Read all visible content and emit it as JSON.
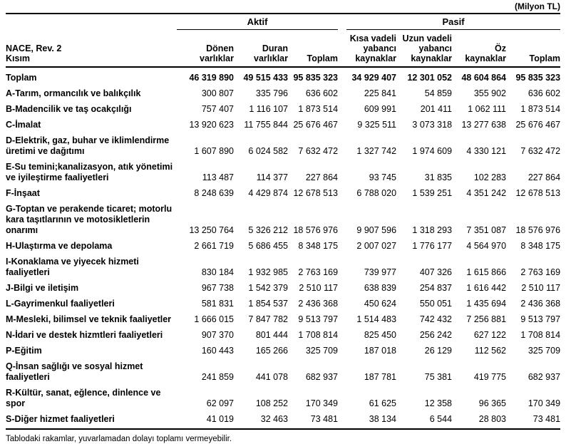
{
  "unit_label": "(Milyon TL)",
  "table": {
    "corner": {
      "line1": "NACE, Rev. 2",
      "line2": "Kısım"
    },
    "groups": [
      {
        "label": "Aktif"
      },
      {
        "label": "Pasif"
      }
    ],
    "columns": [
      "Dönen varlıklar",
      "Duran varlıklar",
      "Toplam",
      "Kısa vadeli yabancı kaynaklar",
      "Uzun vadeli yabancı kaynaklar",
      "Öz kaynaklar",
      "Toplam"
    ],
    "rows": [
      {
        "label": "Toplam",
        "bold": true,
        "values": [
          "46 319 890",
          "49 515 433",
          "95 835 323",
          "34 929 407",
          "12 301 052",
          "48 604 864",
          "95 835 323"
        ]
      },
      {
        "label": "A-Tarım, ormancılık ve balıkçılık",
        "bold": false,
        "values": [
          "300 807",
          "335 796",
          "636 602",
          "225 841",
          "54 859",
          "355 902",
          "636 602"
        ]
      },
      {
        "label": "B-Madencilik ve taş ocakçılığı",
        "bold": false,
        "values": [
          "757 407",
          "1 116 107",
          "1 873 514",
          "609 991",
          "201 411",
          "1 062 111",
          "1 873 514"
        ]
      },
      {
        "label": "C-İmalat",
        "bold": false,
        "values": [
          "13 920 623",
          "11 755 844",
          "25 676 467",
          "9 325 511",
          "3 073 318",
          "13 277 638",
          "25 676 467"
        ]
      },
      {
        "label": "D-Elektrik, gaz, buhar ve iklimlendirme üretimi ve dağıtımı",
        "bold": false,
        "values": [
          "1 607 890",
          "6 024 582",
          "7 632 472",
          "1 327 742",
          "1 974 609",
          "4 330 121",
          "7 632 472"
        ]
      },
      {
        "label": "E-Su temini;kanalizasyon, atık yönetimi ve iyileştirme faaliyetleri",
        "bold": false,
        "values": [
          "113 487",
          "114 377",
          "227 864",
          "93 745",
          "31 835",
          "102 283",
          "227 864"
        ]
      },
      {
        "label": "F-İnşaat",
        "bold": false,
        "values": [
          "8 248 639",
          "4 429 874",
          "12 678 513",
          "6 788 020",
          "1 539 251",
          "4 351 242",
          "12 678 513"
        ]
      },
      {
        "label": "G-Toptan ve perakende ticaret; motorlu kara taşıtlarının ve motosikletlerin onarımı",
        "bold": false,
        "values": [
          "13 250 764",
          "5 326 212",
          "18 576 976",
          "9 907 596",
          "1 318 293",
          "7 351 087",
          "18 576 976"
        ]
      },
      {
        "label": "H-Ulaştırma ve depolama",
        "bold": false,
        "values": [
          "2 661 719",
          "5 686 455",
          "8 348 175",
          "2 007 027",
          "1 776 177",
          "4 564 970",
          "8 348 175"
        ]
      },
      {
        "label": "I-Konaklama ve yiyecek hizmeti faaliyetleri",
        "bold": false,
        "values": [
          "830 184",
          "1 932 985",
          "2 763 169",
          "739 977",
          "407 326",
          "1 615 866",
          "2 763 169"
        ]
      },
      {
        "label": "J-Bilgi ve iletişim",
        "bold": false,
        "values": [
          "967 738",
          "1 542 379",
          "2 510 117",
          "638 839",
          "254 837",
          "1 616 442",
          "2 510 117"
        ]
      },
      {
        "label": "L-Gayrimenkul faaliyetleri",
        "bold": false,
        "values": [
          "581 831",
          "1 854 537",
          "2 436 368",
          "450 624",
          "550 051",
          "1 435 694",
          "2 436 368"
        ]
      },
      {
        "label": "M-Mesleki, bilimsel ve teknik faaliyetler",
        "bold": false,
        "values": [
          "1 666 015",
          "7 847 782",
          "9 513 797",
          "1 514 483",
          "742 432",
          "7 256 881",
          "9 513 797"
        ]
      },
      {
        "label": "N-İdari ve destek hizmtleri faaliyetleri",
        "bold": false,
        "values": [
          "907 370",
          "801 444",
          "1 708 814",
          "825 450",
          "256 242",
          "627 122",
          "1 708 814"
        ]
      },
      {
        "label": "P-Eğitim",
        "bold": false,
        "values": [
          "160 443",
          "165 266",
          "325 709",
          "187 018",
          "26 129",
          "112 562",
          "325 709"
        ]
      },
      {
        "label": "Q-İnsan sağlığı ve sosyal hizmet faaliyetleri",
        "bold": false,
        "values": [
          "241 859",
          "441 078",
          "682 937",
          "187 781",
          "75 381",
          "419 775",
          "682 937"
        ]
      },
      {
        "label": "R-Kültür, sanat, eğlence, dinlence ve spor",
        "bold": false,
        "values": [
          "62 097",
          "108 252",
          "170 349",
          "61 625",
          "12 358",
          "96 365",
          "170 349"
        ]
      },
      {
        "label": "S-Diğer hizmet faaliyetleri",
        "bold": false,
        "values": [
          "41 019",
          "32 463",
          "73 481",
          "38 134",
          "6 544",
          "28 803",
          "73 481"
        ]
      }
    ]
  },
  "footnote": "Tablodaki rakamlar, yuvarlamadan dolayı toplamı vermeyebilir."
}
